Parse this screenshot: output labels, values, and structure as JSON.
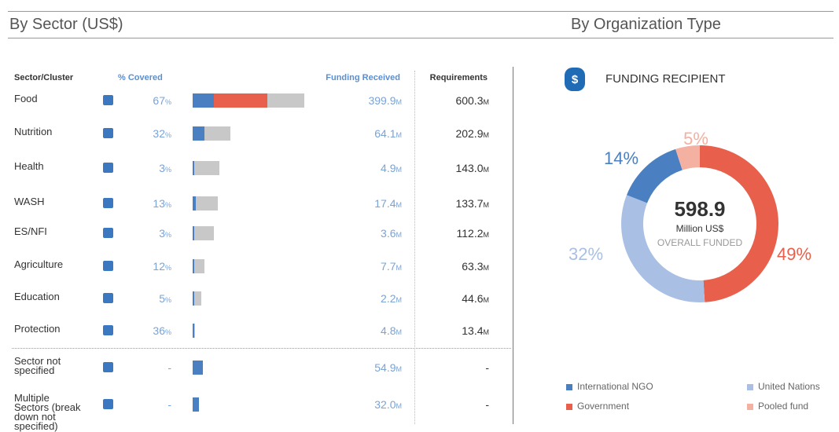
{
  "sector": {
    "title": "By Sector (US$)",
    "headers": [
      "Sector/Cluster",
      "% Covered",
      "Funding Received",
      "Requirements"
    ],
    "percent_unit": "%",
    "money_unit": "M",
    "funding_colors": [
      "#4a7fc1",
      "#e8604c"
    ],
    "requirement_color": "#c8c8c8",
    "rows": [
      {
        "name": "Food",
        "covered": 67,
        "funding": 399.9,
        "funding_by_type": [
          114.0,
          285.9
        ],
        "requirement": 600.3
      },
      {
        "name": "Nutrition",
        "covered": 32,
        "funding": 64.1,
        "requirement": 202.9
      },
      {
        "name": "Health",
        "covered": 3,
        "funding": 4.9,
        "requirement": 143.0,
        "requirement_label": "143.0"
      },
      {
        "name": "WASH",
        "covered": 13,
        "funding": 17.4,
        "requirement": 133.7
      },
      {
        "name": "ES/NFI",
        "covered": 3,
        "funding": 3.6,
        "requirement": 112.2
      },
      {
        "name": "Agriculture",
        "covered": 12,
        "funding": 7.7,
        "requirement": 63.3
      },
      {
        "name": "Education",
        "covered": 5,
        "funding": 2.2,
        "requirement": 44.6
      },
      {
        "name": "Protection",
        "covered": 36,
        "funding": 4.8,
        "requirement": 13.4
      },
      {
        "name": "Sector not specified",
        "covered": "-",
        "funding": 54.9,
        "requirement": "-"
      },
      {
        "name": "Multiple Sectors (break down not specified)",
        "covered": "-",
        "funding": 32.0,
        "funding_label": "32.0",
        "requirement": "-"
      }
    ]
  },
  "chart_data": {
    "type": "donut",
    "section_title": "By Organization Type",
    "title": "FUNDING RECIPIENT",
    "center_value": "598.9",
    "center_unit": "Million US$",
    "center_label": "OVERALL FUNDED",
    "categories": [
      "Government",
      "United Nations",
      "International NGO",
      "Pooled fund"
    ],
    "values": [
      49,
      32,
      14,
      5
    ],
    "value_labels": [
      "49%",
      "32%",
      "14%",
      "5%"
    ],
    "colors": [
      "#e8604c",
      "#a9c0e4",
      "#4a7fc1",
      "#f4b0a0"
    ]
  }
}
